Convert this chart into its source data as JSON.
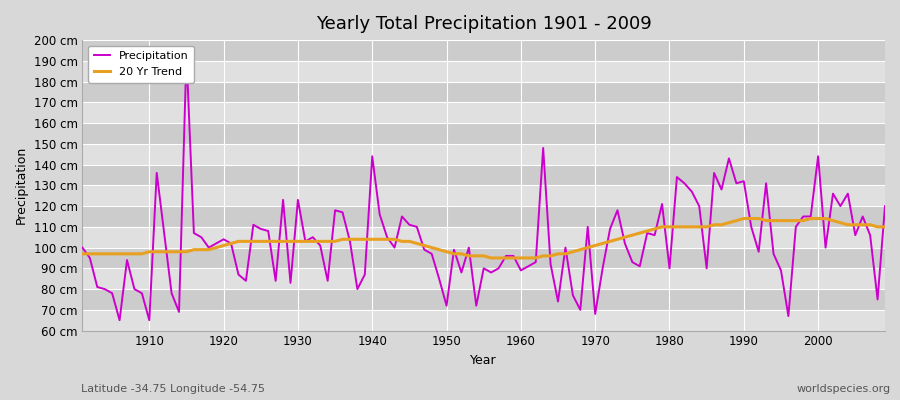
{
  "title": "Yearly Total Precipitation 1901 - 2009",
  "xlabel": "Year",
  "ylabel": "Precipitation",
  "subtitle_left": "Latitude -34.75 Longitude -54.75",
  "subtitle_right": "worldspecies.org",
  "ylim": [
    60,
    200
  ],
  "yticks": [
    60,
    70,
    80,
    90,
    100,
    110,
    120,
    130,
    140,
    150,
    160,
    170,
    180,
    190,
    200
  ],
  "ytick_labels": [
    "60 cm",
    "70 cm",
    "80 cm",
    "90 cm",
    "100 cm",
    "110 cm",
    "120 cm",
    "130 cm",
    "140 cm",
    "150 cm",
    "160 cm",
    "170 cm",
    "180 cm",
    "190 cm",
    "200 cm"
  ],
  "xlim": [
    1901,
    2009
  ],
  "background_color": "#d8d8d8",
  "plot_bg_color": "#d8d8d8",
  "band_color_light": "#e0e0e0",
  "band_color_dark": "#cccccc",
  "grid_color": "#ffffff",
  "precip_color": "#cc00cc",
  "trend_color": "#e8a020",
  "precip_linewidth": 1.4,
  "trend_linewidth": 2.2,
  "years": [
    1901,
    1902,
    1903,
    1904,
    1905,
    1906,
    1907,
    1908,
    1909,
    1910,
    1911,
    1912,
    1913,
    1914,
    1915,
    1916,
    1917,
    1918,
    1919,
    1920,
    1921,
    1922,
    1923,
    1924,
    1925,
    1926,
    1927,
    1928,
    1929,
    1930,
    1931,
    1932,
    1933,
    1934,
    1935,
    1936,
    1937,
    1938,
    1939,
    1940,
    1941,
    1942,
    1943,
    1944,
    1945,
    1946,
    1947,
    1948,
    1949,
    1950,
    1951,
    1952,
    1953,
    1954,
    1955,
    1956,
    1957,
    1958,
    1959,
    1960,
    1961,
    1962,
    1963,
    1964,
    1965,
    1966,
    1967,
    1968,
    1969,
    1970,
    1971,
    1972,
    1973,
    1974,
    1975,
    1976,
    1977,
    1978,
    1979,
    1980,
    1981,
    1982,
    1983,
    1984,
    1985,
    1986,
    1987,
    1988,
    1989,
    1990,
    1991,
    1992,
    1993,
    1994,
    1995,
    1996,
    1997,
    1998,
    1999,
    2000,
    2001,
    2002,
    2003,
    2004,
    2005,
    2006,
    2007,
    2008,
    2009
  ],
  "precip": [
    100,
    95,
    81,
    80,
    78,
    65,
    94,
    80,
    78,
    65,
    136,
    107,
    78,
    69,
    193,
    107,
    105,
    100,
    102,
    104,
    102,
    87,
    84,
    111,
    109,
    108,
    84,
    123,
    83,
    123,
    103,
    105,
    101,
    84,
    118,
    117,
    103,
    80,
    87,
    144,
    116,
    105,
    100,
    115,
    111,
    110,
    99,
    97,
    85,
    72,
    99,
    88,
    100,
    72,
    90,
    88,
    90,
    96,
    96,
    89,
    91,
    93,
    148,
    92,
    74,
    100,
    77,
    70,
    110,
    68,
    90,
    109,
    118,
    102,
    93,
    91,
    107,
    106,
    121,
    90,
    134,
    131,
    127,
    120,
    90,
    136,
    128,
    143,
    131,
    132,
    110,
    98,
    131,
    97,
    89,
    67,
    110,
    115,
    115,
    144,
    100,
    126,
    120,
    126,
    106,
    115,
    106,
    75,
    120
  ],
  "trend": [
    97,
    97,
    97,
    97,
    97,
    97,
    97,
    97,
    97,
    98,
    98,
    98,
    98,
    98,
    98,
    99,
    99,
    99,
    100,
    101,
    102,
    103,
    103,
    103,
    103,
    103,
    103,
    103,
    103,
    103,
    103,
    103,
    103,
    103,
    103,
    104,
    104,
    104,
    104,
    104,
    104,
    104,
    104,
    103,
    103,
    102,
    101,
    100,
    99,
    98,
    97,
    97,
    96,
    96,
    96,
    95,
    95,
    95,
    95,
    95,
    95,
    95,
    96,
    96,
    97,
    97,
    98,
    99,
    100,
    101,
    102,
    103,
    104,
    105,
    106,
    107,
    108,
    109,
    110,
    110,
    110,
    110,
    110,
    110,
    110,
    111,
    111,
    112,
    113,
    114,
    114,
    114,
    113,
    113,
    113,
    113,
    113,
    113,
    114,
    114,
    114,
    113,
    112,
    111,
    111,
    111,
    111,
    110,
    110
  ]
}
